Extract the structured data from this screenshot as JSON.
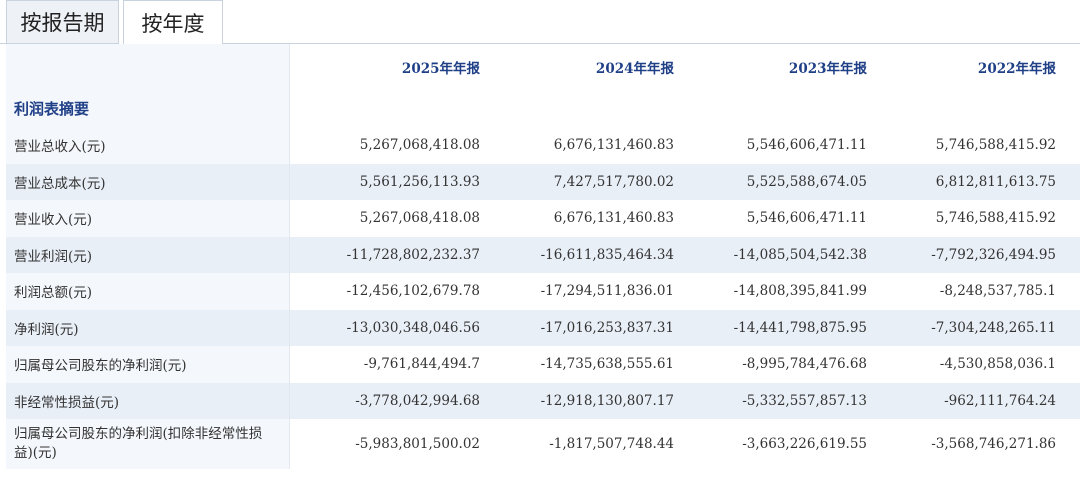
{
  "tabs": [
    {
      "label": "按报告期"
    },
    {
      "label": "按年度"
    }
  ],
  "columns": [
    "2025年年报",
    "2024年年报",
    "2023年年报",
    "2022年年报"
  ],
  "section_title": "利润表摘要",
  "rows": [
    {
      "label": "营业总收入(元)",
      "values": [
        "5,267,068,418.08",
        "6,676,131,460.83",
        "5,546,606,471.11",
        "5,746,588,415.92"
      ]
    },
    {
      "label": "营业总成本(元)",
      "values": [
        "5,561,256,113.93",
        "7,427,517,780.02",
        "5,525,588,674.05",
        "6,812,811,613.75"
      ]
    },
    {
      "label": "营业收入(元)",
      "values": [
        "5,267,068,418.08",
        "6,676,131,460.83",
        "5,546,606,471.11",
        "5,746,588,415.92"
      ]
    },
    {
      "label": "营业利润(元)",
      "values": [
        "-11,728,802,232.37",
        "-16,611,835,464.34",
        "-14,085,504,542.38",
        "-7,792,326,494.95"
      ]
    },
    {
      "label": "利润总额(元)",
      "values": [
        "-12,456,102,679.78",
        "-17,294,511,836.01",
        "-14,808,395,841.99",
        "-8,248,537,785.1"
      ]
    },
    {
      "label": "净利润(元)",
      "values": [
        "-13,030,348,046.56",
        "-17,016,253,837.31",
        "-14,441,798,875.95",
        "-7,304,248,265.11"
      ]
    },
    {
      "label": "归属母公司股东的净利润(元)",
      "values": [
        "-9,761,844,494.7",
        "-14,735,638,555.61",
        "-8,995,784,476.68",
        "-4,530,858,036.1"
      ]
    },
    {
      "label": "非经常性损益(元)",
      "values": [
        "-3,778,042,994.68",
        "-12,918,130,807.17",
        "-5,332,557,857.13",
        "-962,111,764.24"
      ]
    },
    {
      "label": "归属母公司股东的净利润(扣除非经常性损益)(元)",
      "values": [
        "-5,983,801,500.02",
        "-1,817,507,748.44",
        "-3,663,226,619.55",
        "-3,568,746,271.86"
      ]
    }
  ]
}
